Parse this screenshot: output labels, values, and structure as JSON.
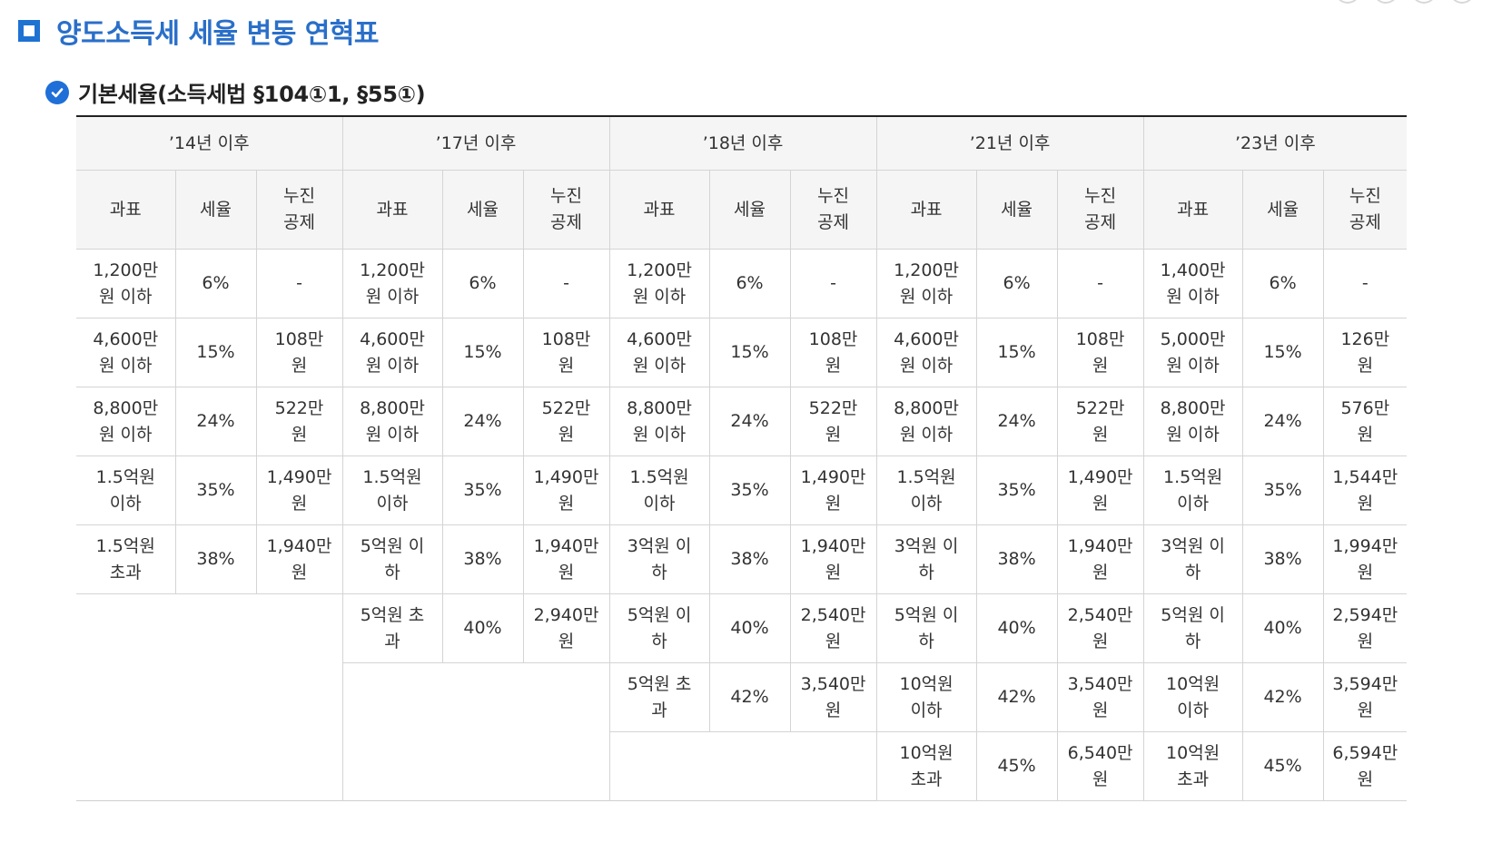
{
  "title": "양도소득세 세율 변동 연혁표",
  "subtitle": "기본세율(소득세법 §104①1, §55①)",
  "columns": {
    "periods": [
      "’14년 이후",
      "’17년 이후",
      "’18년 이후",
      "’21년 이후",
      "’23년 이후"
    ],
    "sub": {
      "base": "과표",
      "rate": "세율",
      "deduction": "누진\n공제"
    }
  },
  "periods": [
    {
      "rows": [
        {
          "base": "1,200만\n원 이하",
          "rate": "6%",
          "deduction": "-"
        },
        {
          "base": "4,600만\n원 이하",
          "rate": "15%",
          "deduction": "108만\n원"
        },
        {
          "base": "8,800만\n원 이하",
          "rate": "24%",
          "deduction": "522만\n원"
        },
        {
          "base": "1.5억원\n이하",
          "rate": "35%",
          "deduction": "1,490만\n원"
        },
        {
          "base": "1.5억원\n초과",
          "rate": "38%",
          "deduction": "1,940만\n원"
        }
      ]
    },
    {
      "rows": [
        {
          "base": "1,200만\n원 이하",
          "rate": "6%",
          "deduction": "-"
        },
        {
          "base": "4,600만\n원 이하",
          "rate": "15%",
          "deduction": "108만\n원"
        },
        {
          "base": "8,800만\n원 이하",
          "rate": "24%",
          "deduction": "522만\n원"
        },
        {
          "base": "1.5억원\n이하",
          "rate": "35%",
          "deduction": "1,490만\n원"
        },
        {
          "base": "5억원 이\n하",
          "rate": "38%",
          "deduction": "1,940만\n원"
        },
        {
          "base": "5억원 초\n과",
          "rate": "40%",
          "deduction": "2,940만\n원"
        }
      ]
    },
    {
      "rows": [
        {
          "base": "1,200만\n원 이하",
          "rate": "6%",
          "deduction": "-"
        },
        {
          "base": "4,600만\n원 이하",
          "rate": "15%",
          "deduction": "108만\n원"
        },
        {
          "base": "8,800만\n원 이하",
          "rate": "24%",
          "deduction": "522만\n원"
        },
        {
          "base": "1.5억원\n이하",
          "rate": "35%",
          "deduction": "1,490만\n원"
        },
        {
          "base": "3억원 이\n하",
          "rate": "38%",
          "deduction": "1,940만\n원"
        },
        {
          "base": "5억원 이\n하",
          "rate": "40%",
          "deduction": "2,540만\n원"
        },
        {
          "base": "5억원 초\n과",
          "rate": "42%",
          "deduction": "3,540만\n원"
        }
      ]
    },
    {
      "rows": [
        {
          "base": "1,200만\n원 이하",
          "rate": "6%",
          "deduction": "-"
        },
        {
          "base": "4,600만\n원 이하",
          "rate": "15%",
          "deduction": "108만\n원"
        },
        {
          "base": "8,800만\n원 이하",
          "rate": "24%",
          "deduction": "522만\n원"
        },
        {
          "base": "1.5억원\n이하",
          "rate": "35%",
          "deduction": "1,490만\n원"
        },
        {
          "base": "3억원 이\n하",
          "rate": "38%",
          "deduction": "1,940만\n원"
        },
        {
          "base": "5억원 이\n하",
          "rate": "40%",
          "deduction": "2,540만\n원"
        },
        {
          "base": "10억원\n이하",
          "rate": "42%",
          "deduction": "3,540만\n원"
        },
        {
          "base": "10억원\n초과",
          "rate": "45%",
          "deduction": "6,540만\n원"
        }
      ]
    },
    {
      "rows": [
        {
          "base": "1,400만\n원 이하",
          "rate": "6%",
          "deduction": "-"
        },
        {
          "base": "5,000만\n원 이하",
          "rate": "15%",
          "deduction": "126만\n원"
        },
        {
          "base": "8,800만\n원 이하",
          "rate": "24%",
          "deduction": "576만\n원"
        },
        {
          "base": "1.5억원\n이하",
          "rate": "35%",
          "deduction": "1,544만\n원"
        },
        {
          "base": "3억원 이\n하",
          "rate": "38%",
          "deduction": "1,994만\n원"
        },
        {
          "base": "5억원 이\n하",
          "rate": "40%",
          "deduction": "2,594만\n원"
        },
        {
          "base": "10억원\n이하",
          "rate": "42%",
          "deduction": "3,594만\n원"
        },
        {
          "base": "10억원\n초과",
          "rate": "45%",
          "deduction": "6,594만\n원"
        }
      ]
    }
  ]
}
